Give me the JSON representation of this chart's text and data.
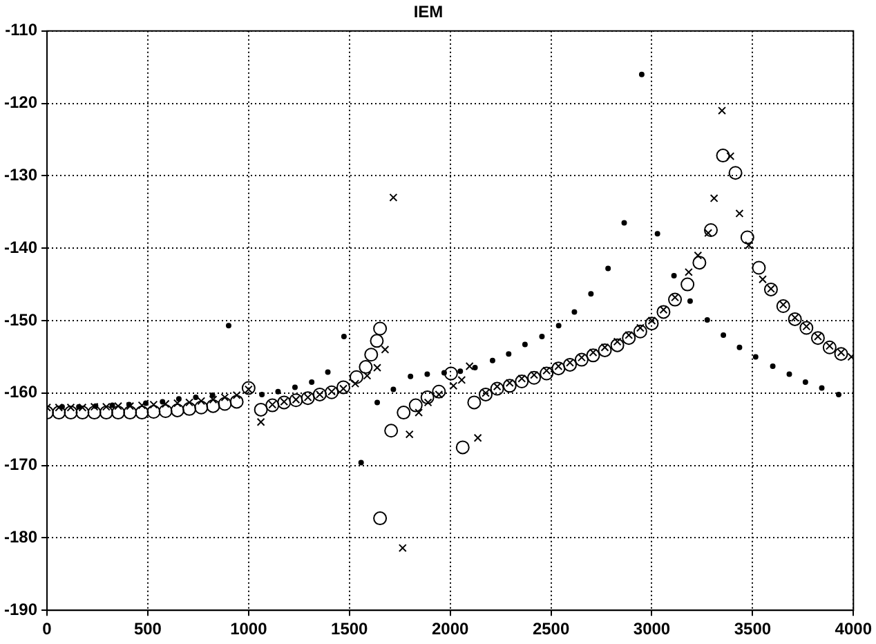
{
  "chart_data": {
    "type": "scatter",
    "title": "IEM",
    "xlim": [
      0,
      4000
    ],
    "xticks": [
      0,
      500,
      1000,
      1500,
      2000,
      2500,
      3000,
      3500,
      4000
    ],
    "ylim": [
      -190,
      -110
    ],
    "yticks": [
      -190,
      -180,
      -170,
      -160,
      -150,
      -140,
      -130,
      -120,
      -110
    ],
    "grid": true,
    "legend": false,
    "line_style": "dotted",
    "series": [
      {
        "color": "#000000",
        "marker": "circle",
        "x": [
          0,
          59,
          118,
          176,
          235,
          294,
          353,
          412,
          471,
          529,
          588,
          647,
          706,
          765,
          824,
          882,
          941,
          1000,
          1061,
          1118,
          1176,
          1235,
          1294,
          1353,
          1412,
          1470,
          1535,
          1581,
          1608,
          1636,
          1652,
          1652,
          1707,
          1769,
          1829,
          1887,
          1944,
          2004,
          2062,
          2119,
          2176,
          2233,
          2295,
          2355,
          2416,
          2478,
          2537,
          2594,
          2652,
          2709,
          2767,
          2829,
          2886,
          2943,
          3000,
          3058,
          3115,
          3177,
          3236,
          3293,
          3353,
          3415,
          3474,
          3531,
          3591,
          3652,
          3710,
          3767,
          3824,
          3882,
          3939
        ],
        "values": [
          -162.7,
          -162.7,
          -162.7,
          -162.7,
          -162.7,
          -162.7,
          -162.7,
          -162.7,
          -162.7,
          -162.6,
          -162.5,
          -162.4,
          -162.2,
          -162.0,
          -161.8,
          -161.5,
          -161.2,
          -159.3,
          -162.3,
          -161.7,
          -161.3,
          -161.0,
          -160.7,
          -160.2,
          -159.9,
          -159.2,
          -157.8,
          -156.4,
          -154.7,
          -152.8,
          -151.1,
          -177.3,
          -165.2,
          -162.7,
          -161.7,
          -160.6,
          -159.8,
          -157.3,
          -167.5,
          -161.3,
          -160.2,
          -159.4,
          -159.0,
          -158.4,
          -157.9,
          -157.3,
          -156.6,
          -156.1,
          -155.4,
          -154.8,
          -154.1,
          -153.4,
          -152.4,
          -151.5,
          -150.4,
          -148.8,
          -147.1,
          -145.0,
          -142.0,
          -137.5,
          -127.2,
          -129.6,
          -138.5,
          -142.7,
          -145.7,
          -148.0,
          -149.8,
          -151.0,
          -152.4,
          -153.7,
          -154.6
        ]
      },
      {
        "color": "#000000",
        "marker": "cross",
        "x": [
          0,
          59,
          118,
          176,
          235,
          294,
          353,
          412,
          471,
          529,
          588,
          647,
          706,
          765,
          824,
          882,
          941,
          1000,
          1061,
          1118,
          1176,
          1235,
          1294,
          1353,
          1412,
          1470,
          1529,
          1588,
          1638,
          1677,
          1718,
          1764,
          1798,
          1844,
          1890,
          1944,
          2016,
          2057,
          2096,
          2137,
          2176,
          2233,
          2295,
          2355,
          2416,
          2478,
          2537,
          2594,
          2652,
          2709,
          2767,
          2829,
          2886,
          2943,
          3000,
          3058,
          3115,
          3183,
          3229,
          3280,
          3309,
          3348,
          3390,
          3435,
          3481,
          3550,
          3591,
          3652,
          3710,
          3767,
          3824,
          3882,
          3939,
          3990
        ],
        "values": [
          -162.0,
          -162.0,
          -162.0,
          -162.0,
          -161.9,
          -161.9,
          -161.8,
          -161.8,
          -161.7,
          -161.6,
          -161.5,
          -161.4,
          -161.3,
          -161.1,
          -160.9,
          -160.6,
          -160.3,
          -159.5,
          -164.0,
          -161.6,
          -161.2,
          -160.9,
          -160.6,
          -160.2,
          -159.8,
          -159.4,
          -158.7,
          -157.6,
          -156.5,
          -154.0,
          -133.0,
          -181.4,
          -165.7,
          -162.7,
          -161.3,
          -160.2,
          -159.0,
          -158.2,
          -156.3,
          -166.2,
          -160.0,
          -159.1,
          -158.6,
          -158.0,
          -157.5,
          -156.9,
          -156.3,
          -155.8,
          -155.1,
          -154.4,
          -153.7,
          -152.9,
          -152.0,
          -151.0,
          -150.0,
          -148.5,
          -146.8,
          -143.3,
          -141.0,
          -137.9,
          -133.1,
          -121.0,
          -127.3,
          -135.2,
          -139.6,
          -144.3,
          -145.6,
          -147.8,
          -149.6,
          -150.8,
          -152.2,
          -153.5,
          -154.4,
          -155.0
        ]
      },
      {
        "color": "#000000",
        "marker": "dot",
        "x": [
          75,
          158,
          241,
          324,
          407,
          490,
          573,
          654,
          738,
          821,
          901,
          1066,
          1146,
          1230,
          1313,
          1393,
          1473,
          1558,
          1638,
          1718,
          1803,
          1886,
          1970,
          2050,
          2123,
          2210,
          2290,
          2371,
          2455,
          2538,
          2616,
          2698,
          2783,
          2863,
          2950,
          3028,
          3110,
          3190,
          3275,
          3355,
          3435,
          3515,
          3600,
          3682,
          3762,
          3843,
          3927
        ],
        "values": [
          -161.9,
          -161.9,
          -161.8,
          -161.7,
          -161.6,
          -161.4,
          -161.2,
          -160.8,
          -160.6,
          -160.3,
          -150.7,
          -160.2,
          -159.8,
          -159.2,
          -158.5,
          -157.1,
          -152.2,
          -169.6,
          -161.3,
          -159.5,
          -157.7,
          -157.4,
          -157.2,
          -157.0,
          -156.5,
          -155.5,
          -154.6,
          -153.3,
          -152.2,
          -150.7,
          -148.8,
          -146.3,
          -142.8,
          -136.5,
          -116.0,
          -138.0,
          -143.8,
          -147.3,
          -149.9,
          -152.0,
          -153.7,
          -155.0,
          -156.3,
          -157.4,
          -158.5,
          -159.3,
          -160.2
        ]
      }
    ]
  }
}
